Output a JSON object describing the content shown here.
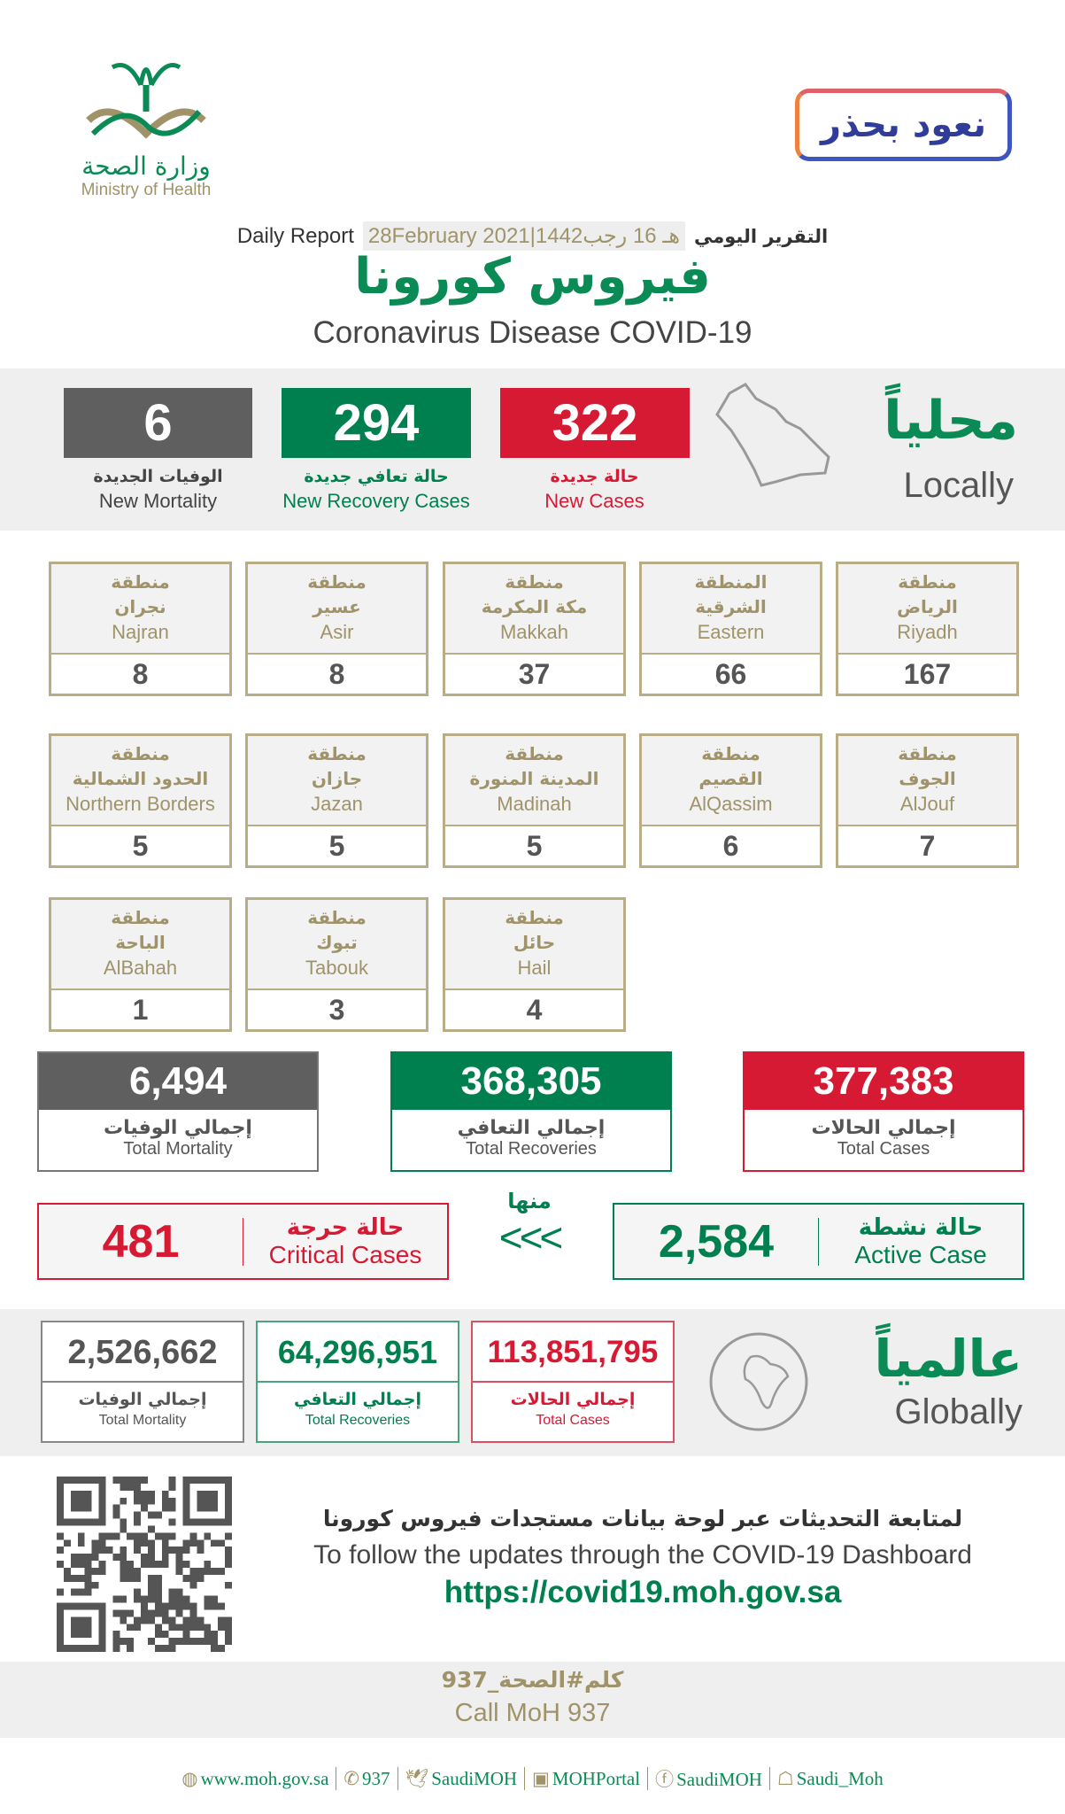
{
  "header": {
    "logo_ar": "وزارة الصحة",
    "logo_en": "Ministry of Health",
    "campaign_badge": "نعود بحذر",
    "daily_report_en": "Daily Report",
    "date": "28February 2021|1442هـ 16 رجب",
    "daily_report_ar": "التقرير اليومي",
    "title_ar": "فيروس كورونا",
    "title_en": "Coronavirus Disease COVID-19"
  },
  "colors": {
    "red": "#d71a33",
    "green": "#007f4f",
    "gray": "#5f5f5f",
    "gold": "#a0936a"
  },
  "locally": {
    "title_ar": "محلياً",
    "title_en": "Locally",
    "map_icon": "saudi-map-icon",
    "stats": [
      {
        "value": "322",
        "label_ar": "حالة جديدة",
        "label_en": "New Cases"
      },
      {
        "value": "294",
        "label_ar": "حالة تعافي جديدة",
        "label_en": "New Recovery Cases"
      },
      {
        "value": "6",
        "label_ar": "الوفيات الجديدة",
        "label_en": "New Mortality"
      }
    ]
  },
  "regions": [
    {
      "ar1": "منطقة",
      "ar2": "الرياض",
      "en": "Riyadh",
      "value": "167"
    },
    {
      "ar1": "المنطقة",
      "ar2": "الشرقية",
      "en": "Eastern",
      "value": "66"
    },
    {
      "ar1": "منطقة",
      "ar2": "مكة المكرمة",
      "en": "Makkah",
      "value": "37"
    },
    {
      "ar1": "منطقة",
      "ar2": "عسير",
      "en": "Asir",
      "value": "8"
    },
    {
      "ar1": "منطقة",
      "ar2": "نجران",
      "en": "Najran",
      "value": "8"
    },
    {
      "ar1": "منطقة",
      "ar2": "الجوف",
      "en": "AlJouf",
      "value": "7"
    },
    {
      "ar1": "منطقة",
      "ar2": "القصيم",
      "en": "AlQassim",
      "value": "6"
    },
    {
      "ar1": "منطقة",
      "ar2": "المدينة المنورة",
      "en": "Madinah",
      "value": "5"
    },
    {
      "ar1": "منطقة",
      "ar2": "جازان",
      "en": "Jazan",
      "value": "5"
    },
    {
      "ar1": "منطقة",
      "ar2": "الحدود الشمالية",
      "en": "Northern Borders",
      "value": "5"
    },
    {
      "ar1": "منطقة",
      "ar2": "حائل",
      "en": "Hail",
      "value": "4"
    },
    {
      "ar1": "منطقة",
      "ar2": "تبوك",
      "en": "Tabouk",
      "value": "3"
    },
    {
      "ar1": "منطقة",
      "ar2": "الباحة",
      "en": "AlBahah",
      "value": "1"
    }
  ],
  "totals": [
    {
      "value": "377,383",
      "label_ar": "إجمالي الحالات",
      "label_en": "Total Cases"
    },
    {
      "value": "368,305",
      "label_ar": "إجمالي التعافي",
      "label_en": "Total Recoveries"
    },
    {
      "value": "6,494",
      "label_ar": "إجمالي الوفيات",
      "label_en": "Total Mortality"
    }
  ],
  "active": {
    "value": "2,584",
    "label_ar": "حالة نشطة",
    "label_en": "Active Case"
  },
  "of_which": {
    "label_ar": "منها",
    "arrows": "<<<"
  },
  "critical": {
    "value": "481",
    "label_ar": "حالة حرجة",
    "label_en": "Critical Cases"
  },
  "globally": {
    "title_ar": "عالمياً",
    "title_en": "Globally",
    "globe_icon": "globe-icon",
    "stats": [
      {
        "value": "113,851,795",
        "label_ar": "إجمالي الحالات",
        "label_en": "Total Cases"
      },
      {
        "value": "64,296,951",
        "label_ar": "إجمالي التعافي",
        "label_en": "Total Recoveries"
      },
      {
        "value": "2,526,662",
        "label_ar": "إجمالي الوفيات",
        "label_en": "Total Mortality"
      }
    ]
  },
  "dashboard": {
    "text_ar": "لمتابعة التحديثات عبر لوحة بيانات مستجدات فيروس كورونا",
    "text_en": "To follow the updates through the COVID-19 Dashboard",
    "url": "https://covid19.moh.gov.sa"
  },
  "call": {
    "hashtag": "كلم#الصحة_937",
    "text": "Call MoH 937"
  },
  "footer": [
    {
      "icon": "globe-icon",
      "label": "www.moh.gov.sa"
    },
    {
      "icon": "phone-icon",
      "label": "937"
    },
    {
      "icon": "twitter-icon",
      "label": "SaudiMOH"
    },
    {
      "icon": "youtube-icon",
      "label": "MOHPortal"
    },
    {
      "icon": "facebook-icon",
      "label": "SaudiMOH"
    },
    {
      "icon": "snapchat-icon",
      "label": "Saudi_Moh"
    }
  ]
}
